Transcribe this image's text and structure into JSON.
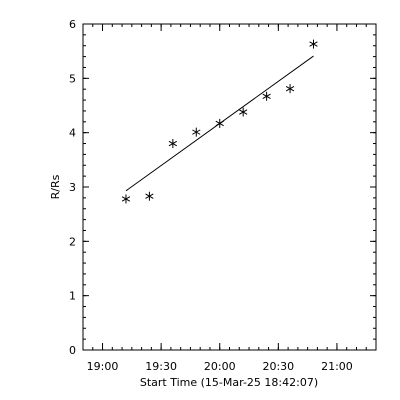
{
  "chart_data": {
    "type": "scatter",
    "xlabel": "Start Time (15-Mar-25 18:42:07)",
    "ylabel": "R/Rs",
    "xlim": [
      "18:50",
      "21:20"
    ],
    "ylim": [
      0,
      6
    ],
    "x_ticks": [
      "19:00",
      "19:30",
      "20:00",
      "20:30",
      "21:00"
    ],
    "y_ticks": [
      0,
      1,
      2,
      3,
      4,
      5,
      6
    ],
    "points": [
      {
        "x": "19:12",
        "y": 2.78
      },
      {
        "x": "19:24",
        "y": 2.83
      },
      {
        "x": "19:36",
        "y": 3.8
      },
      {
        "x": "19:48",
        "y": 4.01
      },
      {
        "x": "20:00",
        "y": 4.17
      },
      {
        "x": "20:12",
        "y": 4.38
      },
      {
        "x": "20:24",
        "y": 4.67
      },
      {
        "x": "20:36",
        "y": 4.81
      },
      {
        "x": "20:48",
        "y": 5.63
      }
    ],
    "fit_line": {
      "start": {
        "x": "19:12",
        "y": 2.93
      },
      "end": {
        "x": "20:48",
        "y": 5.41
      }
    },
    "marker": "asterisk",
    "grid": false,
    "color": "#000000"
  }
}
